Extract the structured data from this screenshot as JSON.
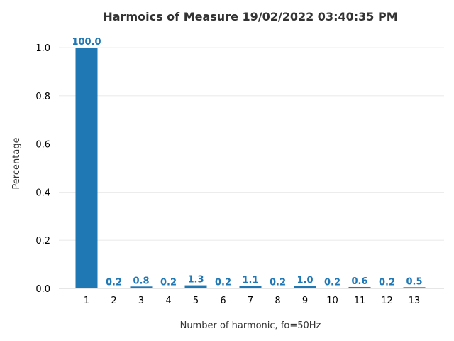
{
  "chart_data": {
    "type": "bar",
    "title": "Harmoics of Measure 19/02/2022 03:40:35 PM",
    "xlabel": "Number of harmonic, fo=50Hz",
    "ylabel": "Percentage",
    "categories": [
      "1",
      "2",
      "3",
      "4",
      "5",
      "6",
      "7",
      "8",
      "9",
      "10",
      "11",
      "12",
      "13"
    ],
    "values": [
      1.0,
      0.002,
      0.008,
      0.002,
      0.013,
      0.002,
      0.011,
      0.002,
      0.01,
      0.002,
      0.006,
      0.002,
      0.005
    ],
    "data_labels": [
      "100.0",
      "0.2",
      "0.8",
      "0.2",
      "1.3",
      "0.2",
      "1.1",
      "0.2",
      "1.0",
      "0.2",
      "0.6",
      "0.2",
      "0.5"
    ],
    "ylim": [
      0,
      1.0
    ],
    "yticks": [
      "0.0",
      "0.2",
      "0.4",
      "0.6",
      "0.8",
      "1.0"
    ],
    "grid": true,
    "bar_color": "#1f77b4",
    "label_color": "#1f77b4"
  }
}
